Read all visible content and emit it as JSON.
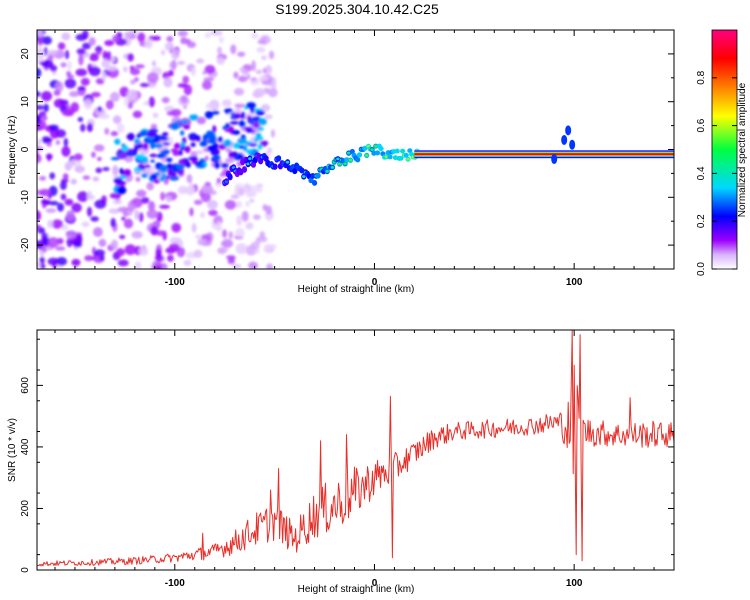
{
  "figure": {
    "title": "S199.2025.304.10.42.C25"
  },
  "chart_data": [
    {
      "type": "heatmap",
      "title": "S199.2025.304.10.42.C25",
      "xlabel": "Height of straight line (km)",
      "ylabel": "Frequency (Hz)",
      "xlim": [
        -169,
        150
      ],
      "ylim": [
        -25,
        25
      ],
      "xticks": [
        -100,
        0,
        100
      ],
      "xtick_labels": [
        "-100",
        "0",
        "100"
      ],
      "yticks": [
        -20,
        -10,
        0,
        10,
        20
      ],
      "ytick_labels": [
        "-20",
        "-10",
        "0",
        "10",
        "20"
      ],
      "colorbar": {
        "label": "Normalized spectral amplitude",
        "range": [
          0,
          1
        ],
        "ticks": [
          0.0,
          0.2,
          0.4,
          0.6,
          0.8
        ],
        "tick_labels": [
          "0.0",
          "0.2",
          "0.4",
          "0.6",
          "0.8"
        ],
        "colormap": [
          "#ffffff",
          "#9b00ff",
          "#0000ff",
          "#00d8ff",
          "#00ff40",
          "#ffff00",
          "#ff8000",
          "#ff0000",
          "#ff0080"
        ]
      },
      "features": {
        "ridge_path": [
          [
            -75,
            -6
          ],
          [
            -60,
            -2
          ],
          [
            -45,
            -3
          ],
          [
            -30,
            -6
          ],
          [
            -15,
            -2
          ],
          [
            0,
            0
          ],
          [
            10,
            -1
          ],
          [
            20,
            -1
          ],
          [
            90,
            -1
          ],
          [
            95,
            -1
          ],
          [
            100,
            -1
          ],
          [
            150,
            -1
          ]
        ],
        "ridge_peak_amplitude": 1.0,
        "noise_region": [
          -169,
          -75
        ],
        "note": "Strong 0 Hz line with low-amplitude scattered noise at low heights"
      }
    },
    {
      "type": "line",
      "xlabel": "Height of straight line (km)",
      "ylabel": "SNR (10 * v/v)",
      "xlim": [
        -169,
        150
      ],
      "ylim": [
        0,
        780
      ],
      "xticks": [
        -100,
        0,
        100
      ],
      "xtick_labels": [
        "-100",
        "0",
        "100"
      ],
      "yticks": [
        0,
        200,
        400,
        600
      ],
      "ytick_labels": [
        "0",
        "200",
        "400",
        "600"
      ],
      "series": [
        {
          "name": "SNR",
          "color": "#e8302a",
          "envelope": {
            "x": [
              -169,
              -140,
              -120,
              -100,
              -80,
              -70,
              -60,
              -50,
              -40,
              -30,
              -20,
              -10,
              0,
              10,
              20,
              30,
              40,
              60,
              80,
              90,
              95,
              98,
              100,
              102,
              105,
              120,
              140,
              150
            ],
            "y": [
              20,
              25,
              30,
              40,
              60,
              90,
              130,
              160,
              100,
              180,
              210,
              250,
              300,
              330,
              380,
              430,
              450,
              460,
              470,
              480,
              470,
              460,
              450,
              460,
              450,
              440,
              440,
              440
            ]
          },
          "noise_amplitude": [
            8,
            10,
            12,
            15,
            25,
            40,
            55,
            65,
            50,
            80,
            90,
            85,
            60,
            50,
            40,
            35,
            30,
            30,
            30,
            35,
            60,
            120,
            250,
            180,
            50,
            40,
            45,
            40
          ],
          "spikes": [
            {
              "x": -86,
              "y": 120
            },
            {
              "x": -52,
              "y": 260
            },
            {
              "x": -48,
              "y": 330
            },
            {
              "x": -27,
              "y": 420
            },
            {
              "x": -14,
              "y": 440
            },
            {
              "x": 8,
              "y": 565
            },
            {
              "x": 9,
              "y": 40
            },
            {
              "x": 99,
              "y": 780
            },
            {
              "x": 101,
              "y": 50
            },
            {
              "x": 103,
              "y": 765
            },
            {
              "x": 104,
              "y": 30
            },
            {
              "x": 128,
              "y": 560
            }
          ]
        }
      ]
    }
  ]
}
